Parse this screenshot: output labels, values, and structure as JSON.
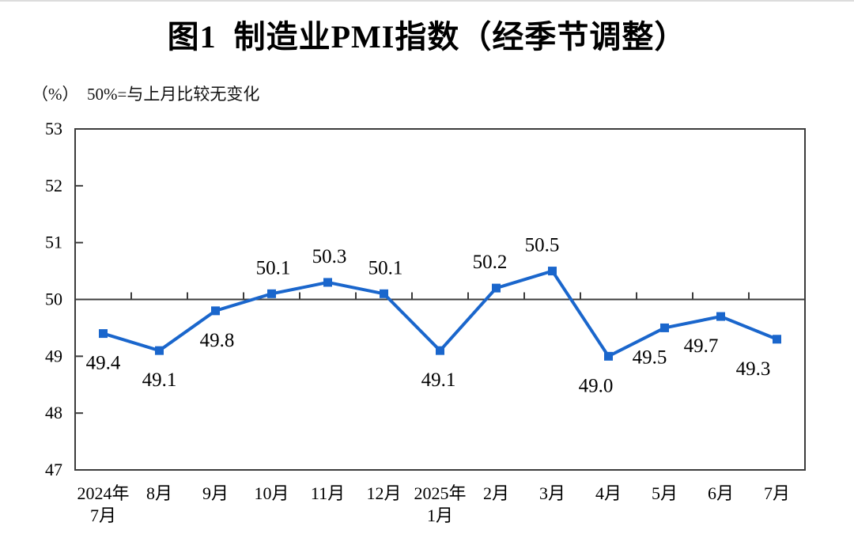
{
  "page": {
    "top_rule_color": "#dcdcdc",
    "background": "#ffffff"
  },
  "header": {
    "title": "图1  制造业PMI指数（经季节调整）",
    "unit_note": "（%）  50%=与上月比较无变化"
  },
  "chart_data": {
    "type": "line",
    "title": "图1 制造业PMI指数（经季节调整）",
    "ylabel": "%",
    "note": "50%=与上月比较无变化",
    "categories": [
      "2024年7月",
      "8月",
      "9月",
      "10月",
      "11月",
      "12月",
      "2025年1月",
      "2月",
      "3月",
      "4月",
      "5月",
      "6月",
      "7月"
    ],
    "category_lines": [
      [
        "2024年",
        "7月"
      ],
      [
        "8月"
      ],
      [
        "9月"
      ],
      [
        "10月"
      ],
      [
        "11月"
      ],
      [
        "12月"
      ],
      [
        "2025年",
        "1月"
      ],
      [
        "2月"
      ],
      [
        "3月"
      ],
      [
        "4月"
      ],
      [
        "5月"
      ],
      [
        "6月"
      ],
      [
        "7月"
      ]
    ],
    "series": [
      {
        "name": "制造业PMI",
        "values": [
          49.4,
          49.1,
          49.8,
          50.1,
          50.3,
          50.1,
          49.1,
          50.2,
          50.5,
          49.0,
          49.5,
          49.7,
          49.3
        ],
        "value_labels": [
          "49.4",
          "49.1",
          "49.8",
          "50.1",
          "50.3",
          "50.1",
          "49.1",
          "50.2",
          "50.5",
          "49.0",
          "49.5",
          "49.7",
          "49.3"
        ]
      }
    ],
    "ylim": [
      47,
      53
    ],
    "yticks": [
      "53",
      "52",
      "51",
      "50",
      "49",
      "48",
      "47"
    ],
    "reference_line": 50,
    "grid": false,
    "legend_position": "none",
    "colors": {
      "line": "#1A66CC",
      "marker": "#1A66CC",
      "axis": "#3c3c3c",
      "text": "#000000"
    },
    "marker_shape": "square",
    "label_positions": [
      "below",
      "below",
      "below",
      "above",
      "above",
      "above",
      "below",
      "above",
      "above",
      "below",
      "below",
      "below",
      "below"
    ],
    "label_dx": [
      0,
      0,
      2,
      2,
      2,
      2,
      -2,
      -8,
      -13,
      -16,
      -19,
      -25,
      -30
    ]
  }
}
